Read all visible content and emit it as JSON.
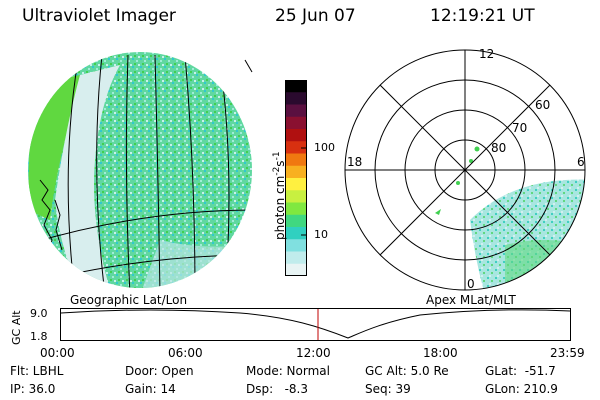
{
  "header": {
    "title": "Ultraviolet Imager",
    "date": "25 Jun 07",
    "time": "12:19:21 UT"
  },
  "left_panel": {
    "caption": "Geographic Lat/Lon"
  },
  "colorbar": {
    "unit_label": "photon cm",
    "unit_sup1": "-2",
    "unit_mid": "s",
    "unit_sup2": "-1",
    "ticks": [
      "100",
      "10"
    ],
    "colors": [
      "#000000",
      "#2a0a2e",
      "#5a1040",
      "#8a1030",
      "#b01010",
      "#d83010",
      "#f07810",
      "#f8b020",
      "#fff040",
      "#c8f040",
      "#80e840",
      "#40d880",
      "#30d0c0",
      "#80e0e0",
      "#c0ecec",
      "#e8f4f4"
    ]
  },
  "right_panel": {
    "caption": "Apex  MLat/MLT",
    "mlt_labels": [
      "12",
      "18",
      "6",
      "0"
    ],
    "mlat_labels": [
      "60",
      "70",
      "80"
    ]
  },
  "altitude_plot": {
    "ylabel": "GC Alt",
    "y_ticks": [
      "9.0",
      "1.8"
    ],
    "x_ticks": [
      "00:00",
      "06:00",
      "12:00",
      "18:00",
      "23:59"
    ],
    "current_time_marker_hour": 12.32
  },
  "info": {
    "filter": "Flt: LBHL",
    "ip": "IP: 36.0",
    "door": "Door: Open",
    "gain": "Gain: 14",
    "mode": "Mode: Normal",
    "dsp": "Dsp:   -8.3",
    "gc_alt": "GC Alt: 5.0 Re",
    "seq": "Seq: 39",
    "glat": "GLat:  -51.7",
    "glon": "GLon: 210.9"
  },
  "colors": {
    "green": "#40d050",
    "cyan": "#40d0c0",
    "light_cyan": "#c0ecec",
    "marker_red": "#c00000"
  }
}
